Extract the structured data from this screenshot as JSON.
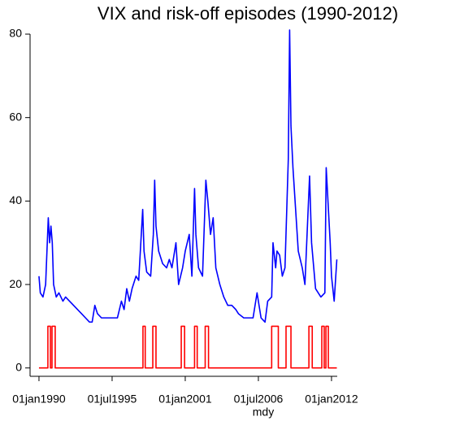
{
  "chart_data": {
    "type": "line",
    "title": "VIX and risk-off episodes (1990-2012)",
    "x_label": "mdy",
    "xlim": [
      1989.33,
      2012.43
    ],
    "xticks": [
      {
        "value": 1990,
        "label": "01jan1990"
      },
      {
        "value": 1995.5,
        "label": "01jul1995"
      },
      {
        "value": 2001,
        "label": "01jan2001"
      },
      {
        "value": 2006.5,
        "label": "01jul2006"
      },
      {
        "value": 2012,
        "label": "01jan2012"
      }
    ],
    "ylim": [
      -2,
      80
    ],
    "yticks": [
      0,
      20,
      40,
      60,
      80
    ],
    "series": [
      {
        "color": "#0000ff",
        "x": [
          1990.0,
          1990.1,
          1990.3,
          1990.5,
          1990.6,
          1990.7,
          1990.8,
          1990.9,
          1991.0,
          1991.1,
          1991.3,
          1991.5,
          1991.8,
          1992.0,
          1992.3,
          1992.6,
          1992.9,
          1993.2,
          1993.5,
          1993.8,
          1994.0,
          1994.2,
          1994.4,
          1994.7,
          1995.0,
          1995.3,
          1995.6,
          1995.9,
          1996.2,
          1996.4,
          1996.6,
          1996.8,
          1997.0,
          1997.3,
          1997.5,
          1997.8,
          1997.9,
          1998.1,
          1998.4,
          1998.6,
          1998.7,
          1998.8,
          1999.0,
          1999.3,
          1999.6,
          1999.8,
          2000.0,
          2000.3,
          2000.5,
          2000.8,
          2001.0,
          2001.3,
          2001.5,
          2001.7,
          2001.8,
          2002.0,
          2002.3,
          2002.55,
          2002.7,
          2002.9,
          2003.1,
          2003.3,
          2003.6,
          2003.9,
          2004.2,
          2004.5,
          2004.8,
          2005.0,
          2005.4,
          2005.8,
          2006.1,
          2006.4,
          2006.7,
          2007.0,
          2007.2,
          2007.5,
          2007.6,
          2007.8,
          2007.9,
          2008.1,
          2008.3,
          2008.5,
          2008.75,
          2008.85,
          2008.95,
          2009.1,
          2009.3,
          2009.5,
          2009.8,
          2010.0,
          2010.35,
          2010.5,
          2010.8,
          2011.2,
          2011.5,
          2011.6,
          2011.8,
          2011.9,
          2012.0,
          2012.2,
          2012.4
        ],
        "values": [
          22,
          18,
          17,
          20,
          28,
          36,
          30,
          34,
          30,
          20,
          17,
          18,
          16,
          17,
          16,
          15,
          14,
          13,
          12,
          11,
          11,
          15,
          13,
          12,
          12,
          12,
          12,
          12,
          16,
          14,
          19,
          16,
          19,
          22,
          21,
          38,
          28,
          23,
          22,
          32,
          45,
          34,
          28,
          25,
          24,
          26,
          24,
          30,
          20,
          24,
          28,
          32,
          22,
          43,
          32,
          24,
          22,
          45,
          40,
          32,
          36,
          24,
          20,
          17,
          15,
          15,
          14,
          13,
          12,
          12,
          12,
          18,
          12,
          11,
          16,
          17,
          30,
          24,
          28,
          27,
          22,
          24,
          50,
          81,
          58,
          48,
          38,
          28,
          24,
          20,
          46,
          30,
          19,
          17,
          18,
          48,
          36,
          30,
          22,
          16,
          26
        ]
      },
      {
        "color": "#ff0000",
        "x": [
          1990.0,
          1990.67,
          1990.67,
          1990.86,
          1990.86,
          1990.98,
          1990.98,
          1991.22,
          1991.22,
          1997.82,
          1997.82,
          1997.99,
          1997.99,
          1998.56,
          1998.56,
          1998.8,
          1998.8,
          2000.7,
          2000.7,
          2000.95,
          2000.95,
          2001.7,
          2001.7,
          2001.9,
          2001.9,
          2002.5,
          2002.5,
          2002.75,
          2002.75,
          2007.5,
          2007.5,
          2008.0,
          2008.0,
          2008.58,
          2008.58,
          2008.95,
          2008.95,
          2010.3,
          2010.3,
          2010.55,
          2010.55,
          2011.27,
          2011.27,
          2011.45,
          2011.45,
          2011.58,
          2011.58,
          2011.76,
          2011.76,
          2012.4
        ],
        "values": [
          0,
          0,
          10,
          10,
          0,
          0,
          10,
          10,
          0,
          0,
          10,
          10,
          0,
          0,
          10,
          10,
          0,
          0,
          10,
          10,
          0,
          0,
          10,
          10,
          0,
          0,
          10,
          10,
          0,
          0,
          10,
          10,
          0,
          0,
          10,
          10,
          0,
          0,
          10,
          10,
          0,
          0,
          10,
          10,
          0,
          0,
          10,
          10,
          0,
          0
        ]
      }
    ]
  }
}
